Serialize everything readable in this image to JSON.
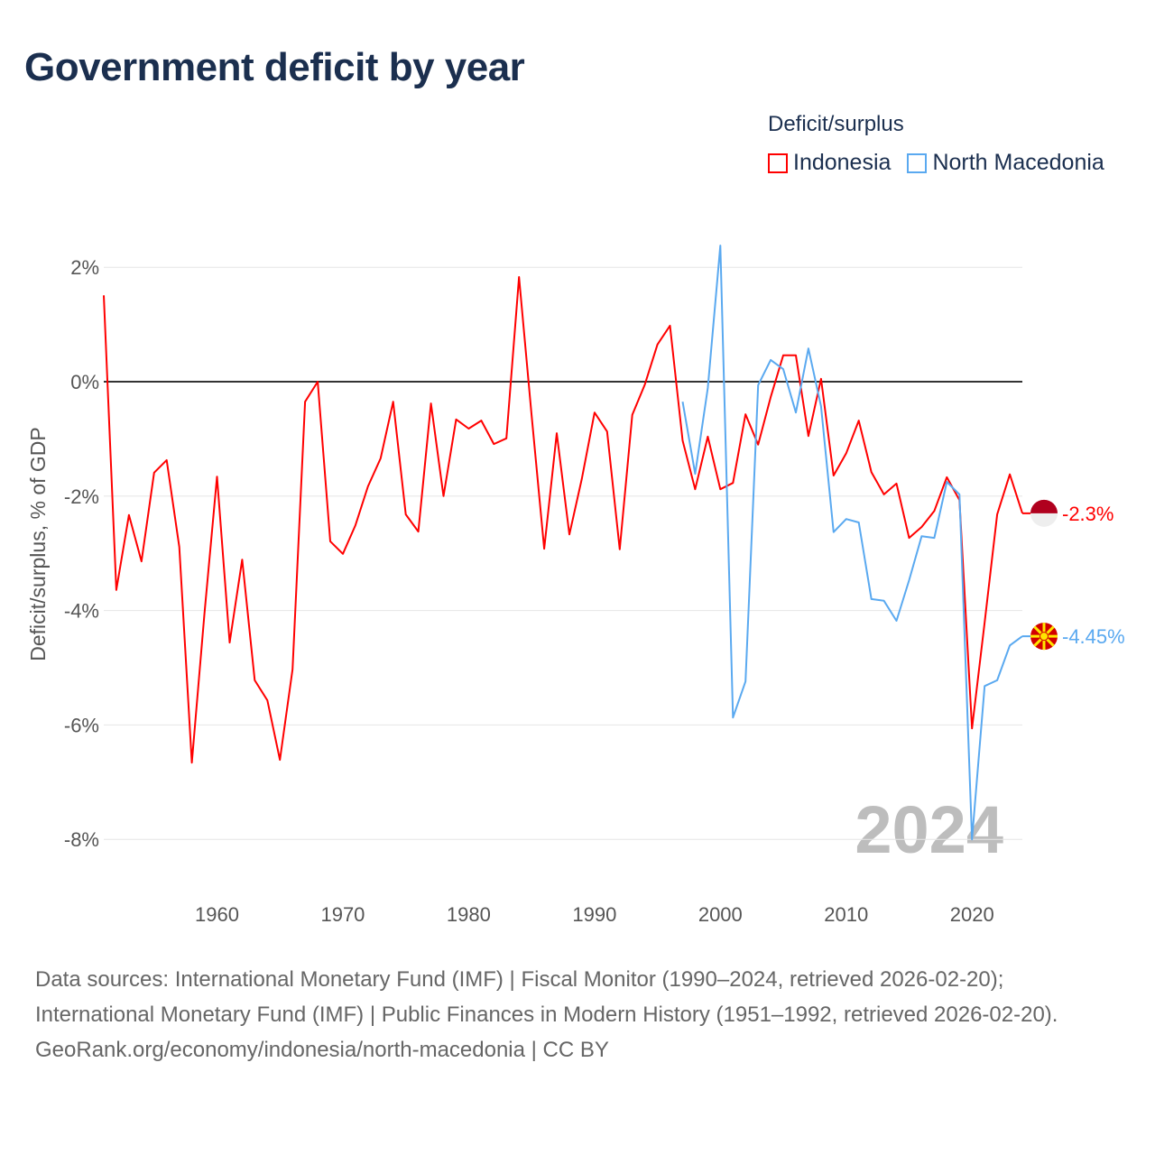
{
  "title": "Government deficit by year",
  "legend": {
    "title": "Deficit/surplus",
    "items": [
      {
        "label": "Indonesia",
        "color": "#ff0000"
      },
      {
        "label": "North Macedonia",
        "color": "#5aa9f0"
      }
    ]
  },
  "watermark_year": "2024",
  "footer": {
    "sources": "Data sources: International Monetary Fund (IMF) | Fiscal Monitor (1990–2024, retrieved 2026-02-20); International Monetary Fund (IMF) | Public Finances in Modern History (1951–1992, retrieved 2026-02-20).",
    "credit": "GeoRank.org/economy/indonesia/north-macedonia | CC BY"
  },
  "chart_data": {
    "type": "line",
    "title": "Government deficit by year",
    "xlabel": "",
    "ylabel": "Deficit/surplus, % of GDP",
    "xlim": [
      1951,
      2024
    ],
    "ylim": [
      -8.5,
      2.5
    ],
    "x_ticks": [
      1960,
      1970,
      1980,
      1990,
      2000,
      2010,
      2020
    ],
    "y_ticks": [
      {
        "value": 2,
        "label": "2%"
      },
      {
        "value": 0,
        "label": "0%"
      },
      {
        "value": -2,
        "label": "-2%"
      },
      {
        "value": -4,
        "label": "-4%"
      },
      {
        "value": -6,
        "label": "-6%"
      },
      {
        "value": -8,
        "label": "-8%"
      }
    ],
    "grid": true,
    "legend_position": "top-right",
    "series": [
      {
        "name": "Indonesia",
        "color": "#ff0000",
        "end_label": "-2.3%",
        "start_year": 1951,
        "values": [
          1.51,
          -3.64,
          -2.33,
          -3.14,
          -1.59,
          -1.37,
          -2.89,
          -6.66,
          -4.05,
          -1.66,
          -4.56,
          -3.11,
          -5.22,
          -5.57,
          -6.61,
          -5.03,
          -0.35,
          0.0,
          -2.79,
          -3.01,
          -2.51,
          -1.83,
          -1.34,
          -0.35,
          -2.32,
          -2.62,
          -0.38,
          -2.0,
          -0.66,
          -0.82,
          -0.68,
          -1.09,
          -0.99,
          1.83,
          -0.58,
          -2.92,
          -0.9,
          -2.67,
          -1.69,
          -0.54,
          -0.87,
          -2.93,
          -0.58,
          -0.05,
          0.65,
          0.98,
          -1.03,
          -1.88,
          -0.96,
          -1.88,
          -1.77,
          -0.57,
          -1.1,
          -0.27,
          0.46,
          0.46,
          -0.95,
          0.05,
          -1.64,
          -1.25,
          -0.68,
          -1.58,
          -1.97,
          -1.78,
          -2.73,
          -2.54,
          -2.26,
          -1.67,
          -2.07,
          -6.06,
          -4.21,
          -2.32,
          -1.62,
          -2.3
        ]
      },
      {
        "name": "North Macedonia",
        "color": "#5aa9f0",
        "end_label": "-4.45%",
        "start_year": 1997,
        "values": [
          -0.35,
          -1.61,
          -0.11,
          2.38,
          -5.87,
          -5.24,
          -0.06,
          0.38,
          0.22,
          -0.54,
          0.58,
          -0.43,
          -2.63,
          -2.4,
          -2.46,
          -3.8,
          -3.83,
          -4.18,
          -3.47,
          -2.7,
          -2.73,
          -1.75,
          -1.97,
          -8.0,
          -5.32,
          -5.22,
          -4.61,
          -4.45
        ]
      }
    ]
  }
}
